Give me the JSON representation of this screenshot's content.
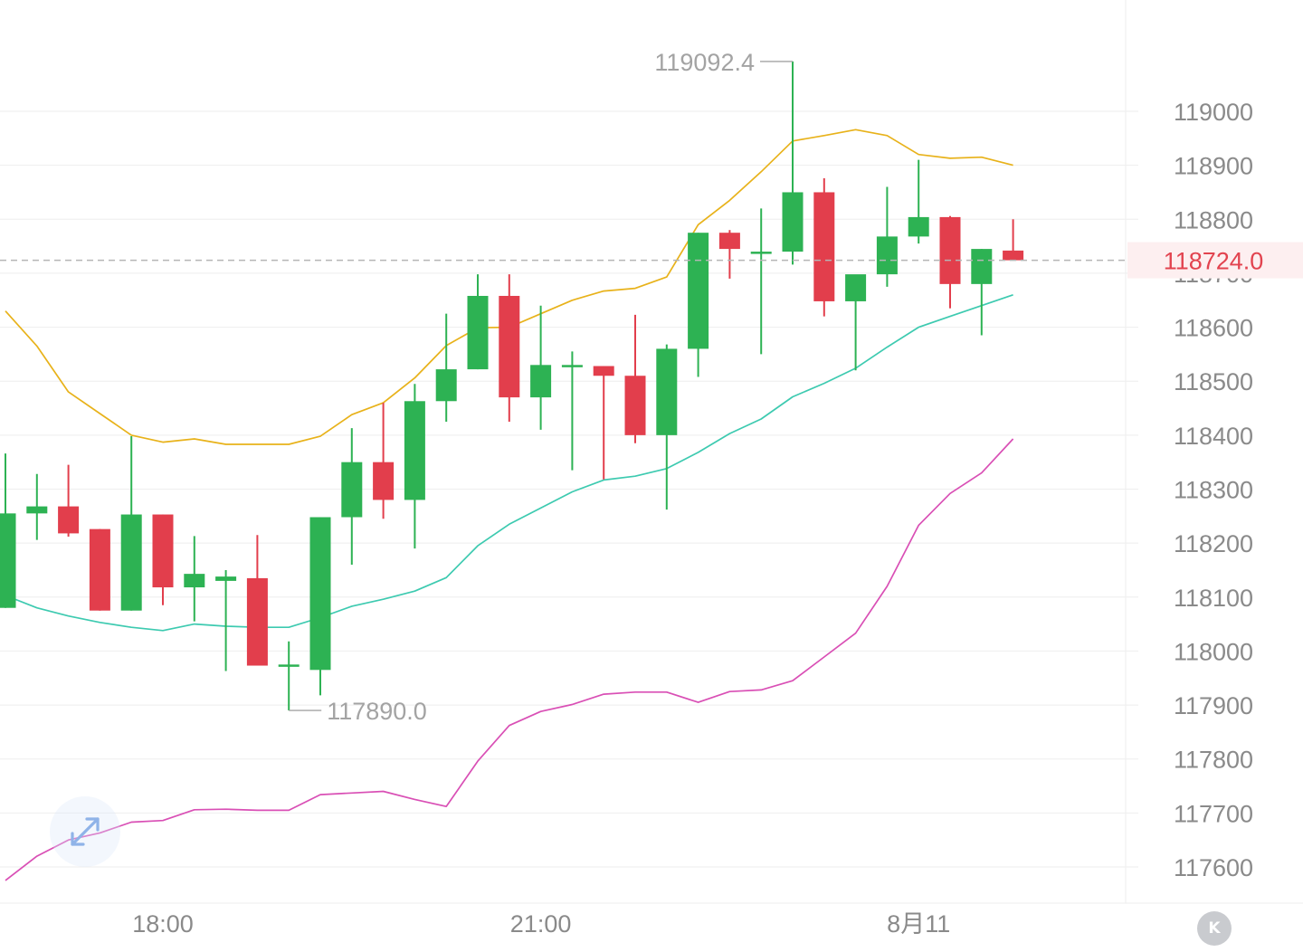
{
  "chart_data": {
    "type": "candlestick",
    "x_labels": [
      {
        "label": "18:00",
        "index": 5
      },
      {
        "label": "21:00",
        "index": 17
      },
      {
        "label": "8月11",
        "index": 29
      }
    ],
    "y_ticks": [
      119000,
      118900,
      118800,
      118700,
      118600,
      118500,
      118400,
      118300,
      118200,
      118100,
      118000,
      117900,
      117800,
      117700,
      117600
    ],
    "ylim": [
      117530,
      119200
    ],
    "current_price": 118724.0,
    "current_price_label": "118724.0",
    "high_annotation": {
      "label": "119092.4",
      "value": 119092.4,
      "index": 25
    },
    "low_annotation": {
      "label": "117890.0",
      "value": 117890.0,
      "index": 9
    },
    "candles": [
      {
        "o": 118080,
        "h": 118366,
        "l": 118080,
        "c": 118255
      },
      {
        "o": 118255,
        "h": 118328,
        "l": 118206,
        "c": 118268
      },
      {
        "o": 118268,
        "h": 118345,
        "l": 118212,
        "c": 118218
      },
      {
        "o": 118226,
        "h": 118226,
        "l": 118075,
        "c": 118075
      },
      {
        "o": 118075,
        "h": 118398,
        "l": 118075,
        "c": 118253
      },
      {
        "o": 118253,
        "h": 118253,
        "l": 118085,
        "c": 118118
      },
      {
        "o": 118118,
        "h": 118213,
        "l": 118055,
        "c": 118143
      },
      {
        "o": 118130,
        "h": 118150,
        "l": 117963,
        "c": 118138
      },
      {
        "o": 118135,
        "h": 118215,
        "l": 117973,
        "c": 117973
      },
      {
        "o": 117975,
        "h": 118018,
        "l": 117890,
        "c": 117975
      },
      {
        "o": 117965,
        "h": 118248,
        "l": 117918,
        "c": 118248
      },
      {
        "o": 118248,
        "h": 118413,
        "l": 118160,
        "c": 118350
      },
      {
        "o": 118350,
        "h": 118460,
        "l": 118245,
        "c": 118280
      },
      {
        "o": 118280,
        "h": 118495,
        "l": 118190,
        "c": 118463
      },
      {
        "o": 118463,
        "h": 118625,
        "l": 118425,
        "c": 118522
      },
      {
        "o": 118522,
        "h": 118698,
        "l": 118522,
        "c": 118658
      },
      {
        "o": 118658,
        "h": 118698,
        "l": 118425,
        "c": 118470
      },
      {
        "o": 118470,
        "h": 118640,
        "l": 118410,
        "c": 118530
      },
      {
        "o": 118530,
        "h": 118555,
        "l": 118335,
        "c": 118530
      },
      {
        "o": 118528,
        "h": 118528,
        "l": 118318,
        "c": 118510
      },
      {
        "o": 118510,
        "h": 118623,
        "l": 118385,
        "c": 118400
      },
      {
        "o": 118400,
        "h": 118568,
        "l": 118262,
        "c": 118560
      },
      {
        "o": 118560,
        "h": 118775,
        "l": 118508,
        "c": 118775
      },
      {
        "o": 118775,
        "h": 118780,
        "l": 118690,
        "c": 118745
      },
      {
        "o": 118740,
        "h": 118820,
        "l": 118550,
        "c": 118740
      },
      {
        "o": 118740,
        "h": 119092.4,
        "l": 118716,
        "c": 118850
      },
      {
        "o": 118850,
        "h": 118876,
        "l": 118620,
        "c": 118648
      },
      {
        "o": 118648,
        "h": 118693,
        "l": 118520,
        "c": 118698
      },
      {
        "o": 118698,
        "h": 118860,
        "l": 118675,
        "c": 118768
      },
      {
        "o": 118768,
        "h": 118910,
        "l": 118755,
        "c": 118804
      },
      {
        "o": 118804,
        "h": 118806,
        "l": 118635,
        "c": 118680
      },
      {
        "o": 118680,
        "h": 118745,
        "l": 118585,
        "c": 118745
      },
      {
        "o": 118742,
        "h": 118800,
        "l": 118724,
        "c": 118724
      }
    ],
    "bands": {
      "upper": [
        118630,
        118565,
        118480,
        118440,
        118400,
        118387,
        118393,
        118383,
        118383,
        118383,
        118398,
        118438,
        118460,
        118506,
        118566,
        118599,
        118600,
        118625,
        118650,
        118667,
        118672,
        118693,
        118790,
        118835,
        118888,
        118945,
        118955,
        118966,
        118955,
        118920,
        118913,
        118915,
        118900
      ],
      "middle": [
        118103,
        118080,
        118065,
        118053,
        118044,
        118038,
        118050,
        118046,
        118044,
        118044,
        118062,
        118083,
        118096,
        118111,
        118136,
        118195,
        118235,
        118265,
        118295,
        118317,
        118324,
        118338,
        118368,
        118403,
        118430,
        118471,
        118496,
        118524,
        118563,
        118600,
        118620,
        118640,
        118660
      ],
      "lower": [
        117575,
        117620,
        117650,
        117663,
        117683,
        117686,
        117706,
        117707,
        117705,
        117705,
        117734,
        117737,
        117740,
        117725,
        117712,
        117796,
        117862,
        117888,
        117901,
        117920,
        117924,
        117924,
        117905,
        117925,
        117928,
        117945,
        117989,
        118033,
        118120,
        118233,
        118292,
        118330,
        118393
      ]
    }
  },
  "colors": {
    "up": "#2db253",
    "down": "#e23e4c",
    "upper_band": "#e8b21a",
    "middle_band": "#3dcab0",
    "lower_band": "#d94fb5",
    "grid": "#eeeeee",
    "axis_text": "#8a8a8a",
    "annotation_text": "#a3a3a3",
    "price_line": "#b5b5b5",
    "price_label_bg": "#fdeff0",
    "price_label_text": "#e2434f"
  },
  "controls": {
    "expand_icon": "diagonal-expand-arrows-icon",
    "k_button_label": "K"
  }
}
